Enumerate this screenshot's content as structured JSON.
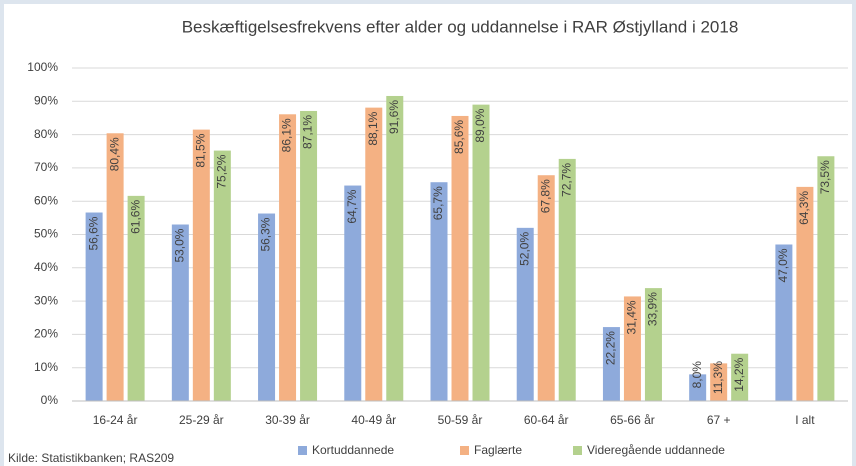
{
  "chart_data": {
    "type": "bar",
    "title": "Beskæftigelsesfrekvens efter alder og uddannelse i RAR Østjylland i 2018",
    "annotation": "Kilde: Statistikbanken; RAS209",
    "categories": [
      "16-24 år",
      "25-29 år",
      "30-39 år",
      "40-49 år",
      "50-59 år",
      "60-64 år",
      "65-66 år",
      "67 +",
      "I alt"
    ],
    "series": [
      {
        "name": "Kortuddannede",
        "color": "#8eaadb",
        "values": [
          56.6,
          53.0,
          56.3,
          64.7,
          65.7,
          52.0,
          22.2,
          8.0,
          47.0
        ],
        "value_labels": [
          "56,6%",
          "53,0%",
          "56,3%",
          "64,7%",
          "65,7%",
          "52,0%",
          "22,2%",
          "8,0%",
          "47,0%"
        ]
      },
      {
        "name": "Faglærte",
        "color": "#f4b183",
        "values": [
          80.4,
          81.5,
          86.1,
          88.1,
          85.6,
          67.8,
          31.4,
          11.3,
          64.3
        ],
        "value_labels": [
          "80,4%",
          "81,5%",
          "86,1%",
          "88,1%",
          "85,6%",
          "67,8%",
          "31,4%",
          "11,3%",
          "64,3%"
        ]
      },
      {
        "name": "Videregående uddannede",
        "color": "#b4d18e",
        "values": [
          61.6,
          75.2,
          87.1,
          91.6,
          89.0,
          72.7,
          33.9,
          14.2,
          73.5
        ],
        "value_labels": [
          "61,6%",
          "75,2%",
          "87,1%",
          "91,6%",
          "89,0%",
          "72,7%",
          "33,9%",
          "14,2%",
          "73,5%"
        ]
      }
    ],
    "ylim": [
      0,
      100
    ],
    "yticks": [
      {
        "value": 0,
        "label": "0%"
      },
      {
        "value": 10,
        "label": "10%"
      },
      {
        "value": 20,
        "label": "20%"
      },
      {
        "value": 30,
        "label": "30%"
      },
      {
        "value": 40,
        "label": "40%"
      },
      {
        "value": 50,
        "label": "50%"
      },
      {
        "value": 60,
        "label": "60%"
      },
      {
        "value": 70,
        "label": "70%"
      },
      {
        "value": 80,
        "label": "80%"
      },
      {
        "value": 90,
        "label": "90%"
      },
      {
        "value": 100,
        "label": "100%"
      }
    ],
    "grid": true,
    "legend": "bottom"
  }
}
